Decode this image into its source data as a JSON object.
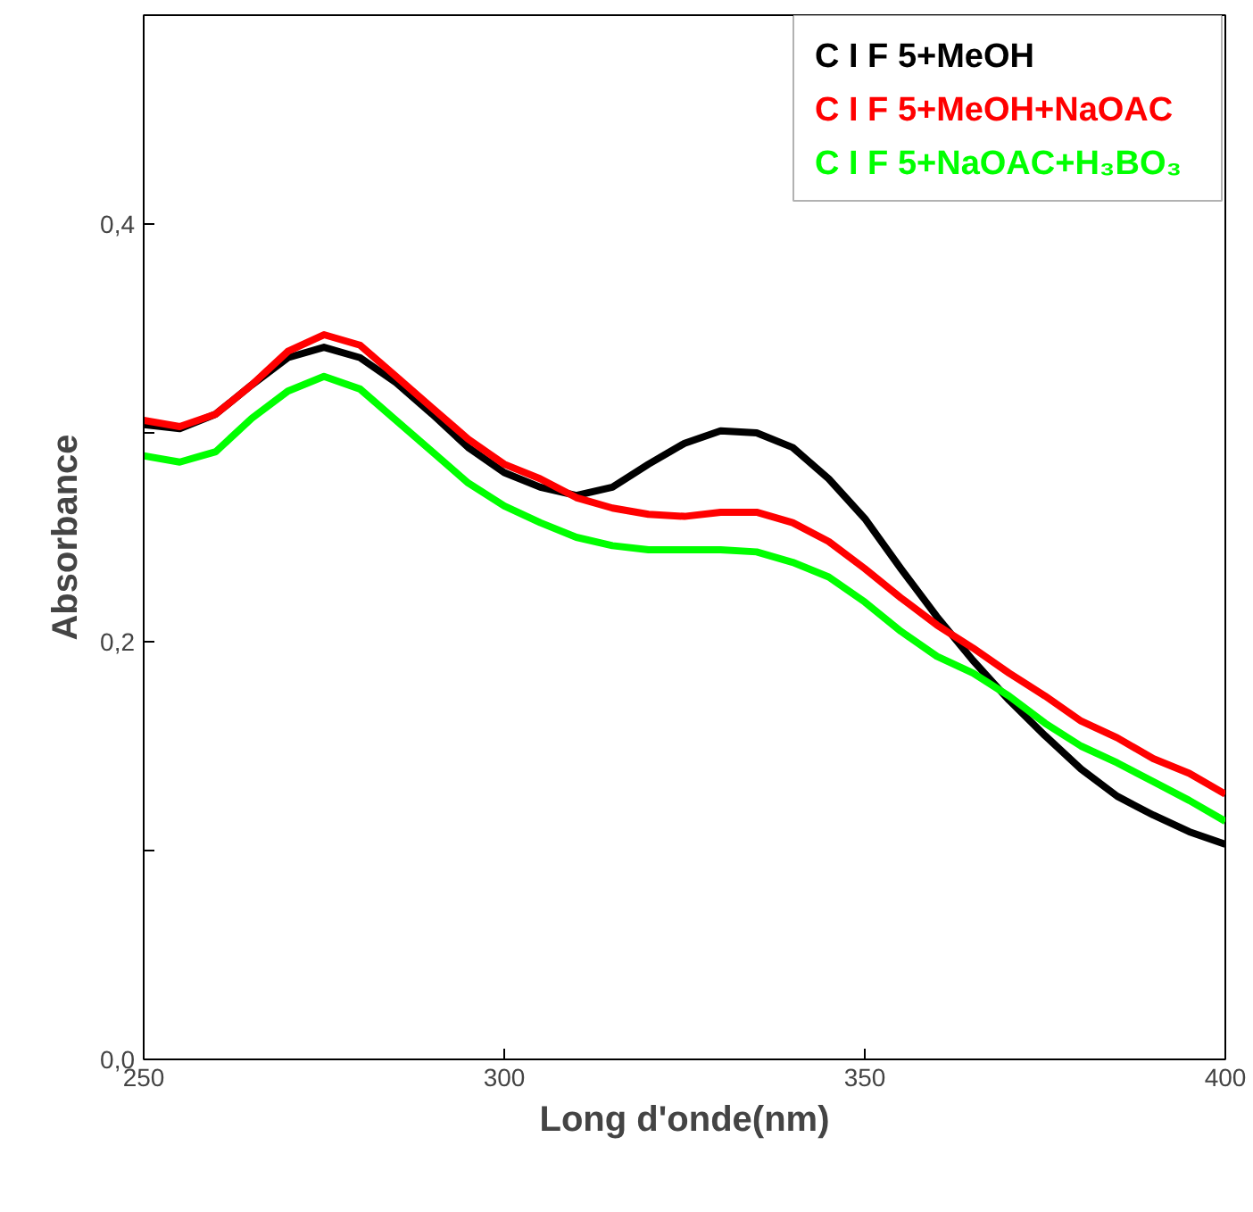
{
  "chart_data": {
    "type": "line",
    "xlabel": "Long d'onde(nm)",
    "ylabel": "Absorbance",
    "x": [
      250,
      255,
      260,
      265,
      270,
      275,
      280,
      285,
      290,
      295,
      300,
      305,
      310,
      315,
      320,
      325,
      330,
      335,
      340,
      345,
      350,
      355,
      360,
      365,
      370,
      375,
      380,
      385,
      390,
      395,
      400
    ],
    "series": [
      {
        "name": "C I F 5+MeOH",
        "color": "#000000",
        "values": [
          0.304,
          0.302,
          0.309,
          0.323,
          0.336,
          0.341,
          0.336,
          0.324,
          0.309,
          0.293,
          0.281,
          0.274,
          0.27,
          0.274,
          0.285,
          0.295,
          0.301,
          0.3,
          0.293,
          0.278,
          0.259,
          0.235,
          0.212,
          0.191,
          0.172,
          0.155,
          0.139,
          0.126,
          0.117,
          0.109,
          0.103
        ]
      },
      {
        "name": "C I F 5+MeOH+NaOAC",
        "color": "#ff0000",
        "values": [
          0.306,
          0.303,
          0.309,
          0.323,
          0.339,
          0.347,
          0.342,
          0.327,
          0.312,
          0.297,
          0.285,
          0.278,
          0.269,
          0.264,
          0.261,
          0.26,
          0.262,
          0.262,
          0.257,
          0.248,
          0.235,
          0.221,
          0.208,
          0.197,
          0.185,
          0.174,
          0.162,
          0.154,
          0.144,
          0.137,
          0.127
        ]
      },
      {
        "name": "C I F 5+NaOAC+H₃BO₃",
        "color": "#00ff00",
        "values": [
          0.289,
          0.286,
          0.291,
          0.307,
          0.32,
          0.327,
          0.321,
          0.306,
          0.291,
          0.276,
          0.265,
          0.257,
          0.25,
          0.246,
          0.244,
          0.244,
          0.244,
          0.243,
          0.238,
          0.231,
          0.219,
          0.205,
          0.193,
          0.185,
          0.174,
          0.161,
          0.15,
          0.142,
          0.133,
          0.124,
          0.114
        ]
      }
    ],
    "xlim": [
      250,
      400
    ],
    "ylim": [
      0,
      0.5
    ],
    "xticks": [
      250,
      300,
      350,
      400
    ],
    "yticks": [
      {
        "value": 0,
        "label": "0,0"
      },
      {
        "value": 0.1,
        "label": null
      },
      {
        "value": 0.2,
        "label": "0,2"
      },
      {
        "value": 0.3,
        "label": null
      },
      {
        "value": 0.4,
        "label": "0,4"
      }
    ],
    "grid": false,
    "legend": "top right",
    "line_style": "solid",
    "marker": "none"
  }
}
